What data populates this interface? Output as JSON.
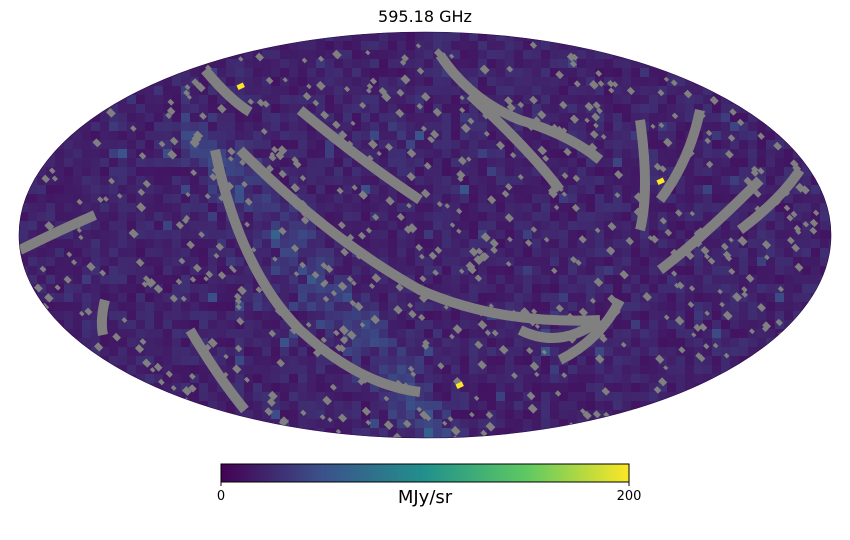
{
  "chart_data": {
    "type": "heatmap",
    "projection": "mollweide",
    "title": "595.18 GHz",
    "colormap": "viridis",
    "colormap_stops": [
      "#440154",
      "#3b528b",
      "#21918c",
      "#5ec962",
      "#fde725"
    ],
    "missing_color": "#808080",
    "background_level": 20,
    "hotspot_level": 200,
    "colorbar": {
      "min": 0,
      "max": 200,
      "min_label": "0",
      "max_label": "200",
      "unit": "MJy/sr",
      "orientation": "horizontal"
    },
    "grid": false
  }
}
